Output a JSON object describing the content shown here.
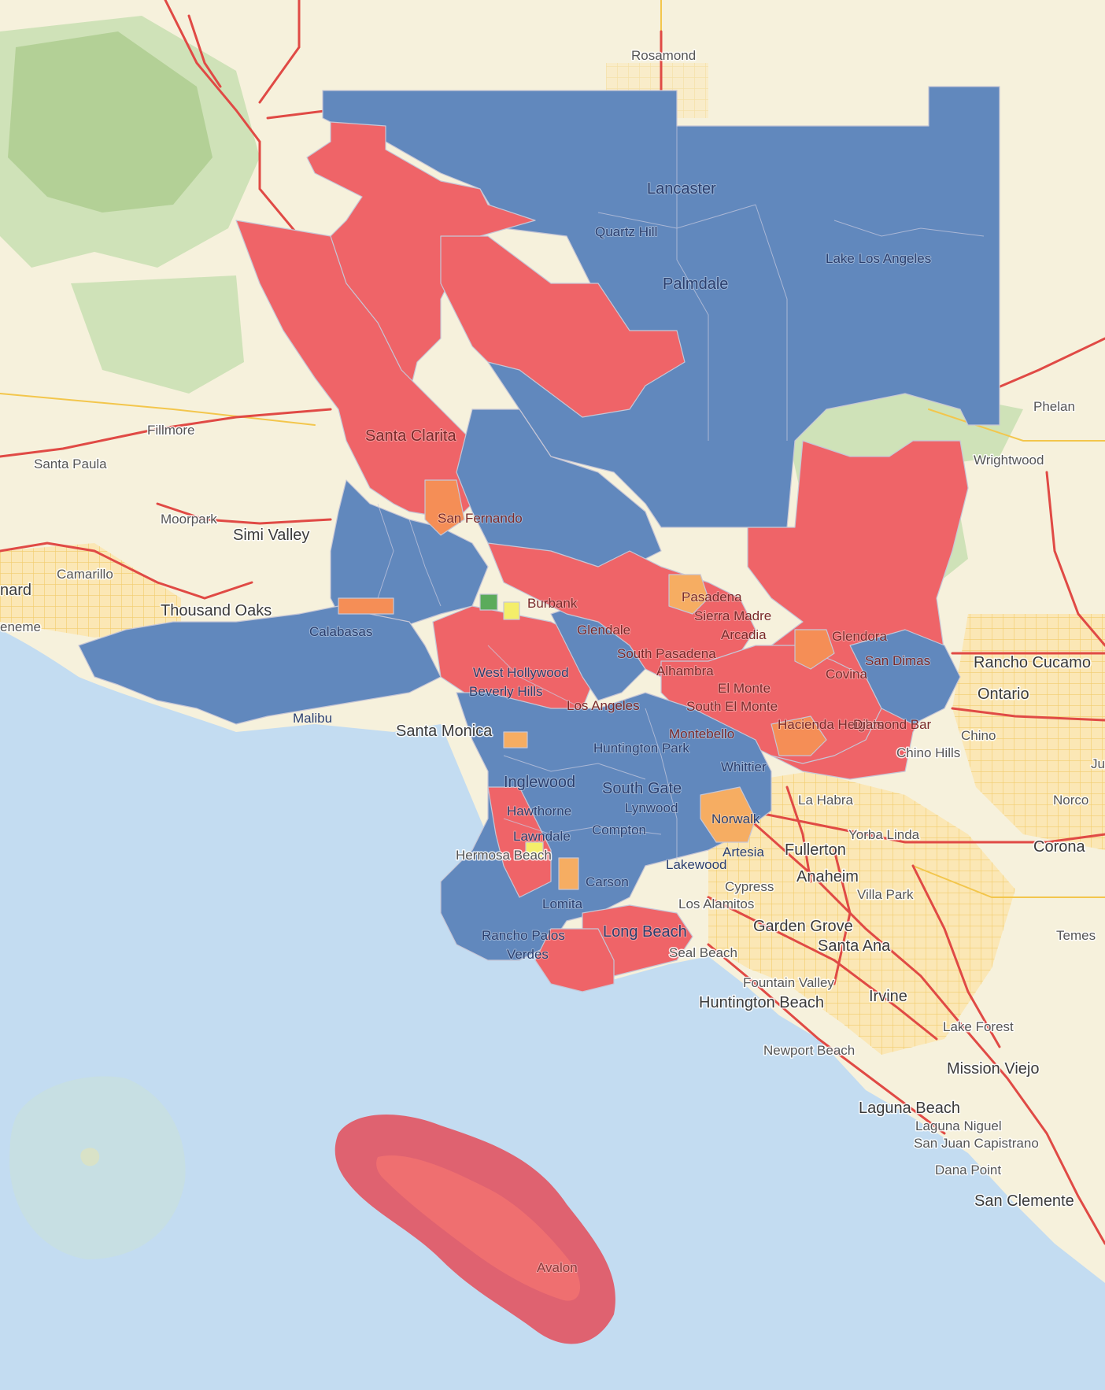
{
  "map": {
    "colors": {
      "land": "#f6f1dc",
      "water": "#c3dcf1",
      "park": "#cfe2b8",
      "mountain": "#a9c98b",
      "highway": "#e04a45",
      "local_road": "#f3c64c",
      "urban_grid": "#f5d27a",
      "region_blue": "#6188bd",
      "region_red": "#ef6468",
      "region_orange": "#f58e56",
      "region_light_orange": "#f6ad62",
      "region_yellow": "#f4ee6a",
      "region_green": "#5bab5b",
      "region_boundary": "#c6c6d6",
      "island_halo": "#df6270"
    },
    "places": {
      "rosamond": "Rosamond",
      "lancaster": "Lancaster",
      "quartz_hill": "Quartz Hill",
      "palmdale": "Palmdale",
      "lake_los_angeles": "Lake Los Angeles",
      "phelan": "Phelan",
      "wrightwood": "Wrightwood",
      "fillmore": "Fillmore",
      "santa_paula": "Santa Paula",
      "santa_clarita": "Santa Clarita",
      "moorpark": "Moorpark",
      "simi_valley": "Simi Valley",
      "san_fernando": "San Fernando",
      "camarillo": "Camarillo",
      "oxnard_partial": "nard",
      "hueneme_partial": "eneme",
      "thousand_oaks": "Thousand Oaks",
      "calabasas": "Calabasas",
      "malibu": "Malibu",
      "burbank": "Burbank",
      "pasadena": "Pasadena",
      "sierra_madre": "Sierra Madre",
      "glendale": "Glendale",
      "arcadia": "Arcadia",
      "glendora": "Glendora",
      "south_pasadena": "South Pasadena",
      "alhambra": "Alhambra",
      "san_dimas": "San Dimas",
      "covina": "Covina",
      "rancho_cucamonga": "Rancho Cucamo",
      "ontario": "Ontario",
      "west_hollywood": "West Hollywood",
      "beverly_hills": "Beverly Hills",
      "los_angeles": "Los Angeles",
      "el_monte": "El Monte",
      "south_el_monte": "South El Monte",
      "santa_monica": "Santa Monica",
      "montebello": "Montebello",
      "hacienda_heights": "Hacienda Heights",
      "diamond_bar": "Diamond Bar",
      "chino": "Chino",
      "chino_hills": "Chino Hills",
      "huntington_park": "Huntington Park",
      "whittier": "Whittier",
      "inglewood": "Inglewood",
      "south_gate": "South Gate",
      "la_habra": "La Habra",
      "norco": "Norco",
      "hawthorne": "Hawthorne",
      "lynwood": "Lynwood",
      "norwalk": "Norwalk",
      "yorba_linda": "Yorba Linda",
      "lawndale": "Lawndale",
      "compton": "Compton",
      "corona": "Corona",
      "hermosa_beach": "Hermosa Beach",
      "artesia": "Artesia",
      "fullerton": "Fullerton",
      "lakewood": "Lakewood",
      "anaheim": "Anaheim",
      "carson": "Carson",
      "cypress": "Cypress",
      "villa_park": "Villa Park",
      "lomita": "Lomita",
      "los_alamitos": "Los Alamitos",
      "rancho_palos_verdes_1": "Rancho Palos",
      "rancho_palos_verdes_2": "Verdes",
      "long_beach": "Long Beach",
      "garden_grove": "Garden Grove",
      "santa_ana": "Santa Ana",
      "temescal_partial": "Temes",
      "seal_beach": "Seal Beach",
      "fountain_valley": "Fountain Valley",
      "huntington_beach": "Huntington Beach",
      "irvine": "Irvine",
      "lake_forest": "Lake Forest",
      "newport_beach": "Newport Beach",
      "mission_viejo": "Mission Viejo",
      "laguna_beach": "Laguna Beach",
      "laguna_niguel": "Laguna Niguel",
      "san_juan_capistrano": "San Juan Capistrano",
      "dana_point": "Dana Point",
      "san_clemente": "San Clemente",
      "avalon": "Avalon",
      "jurupa_partial": "Ju"
    }
  }
}
